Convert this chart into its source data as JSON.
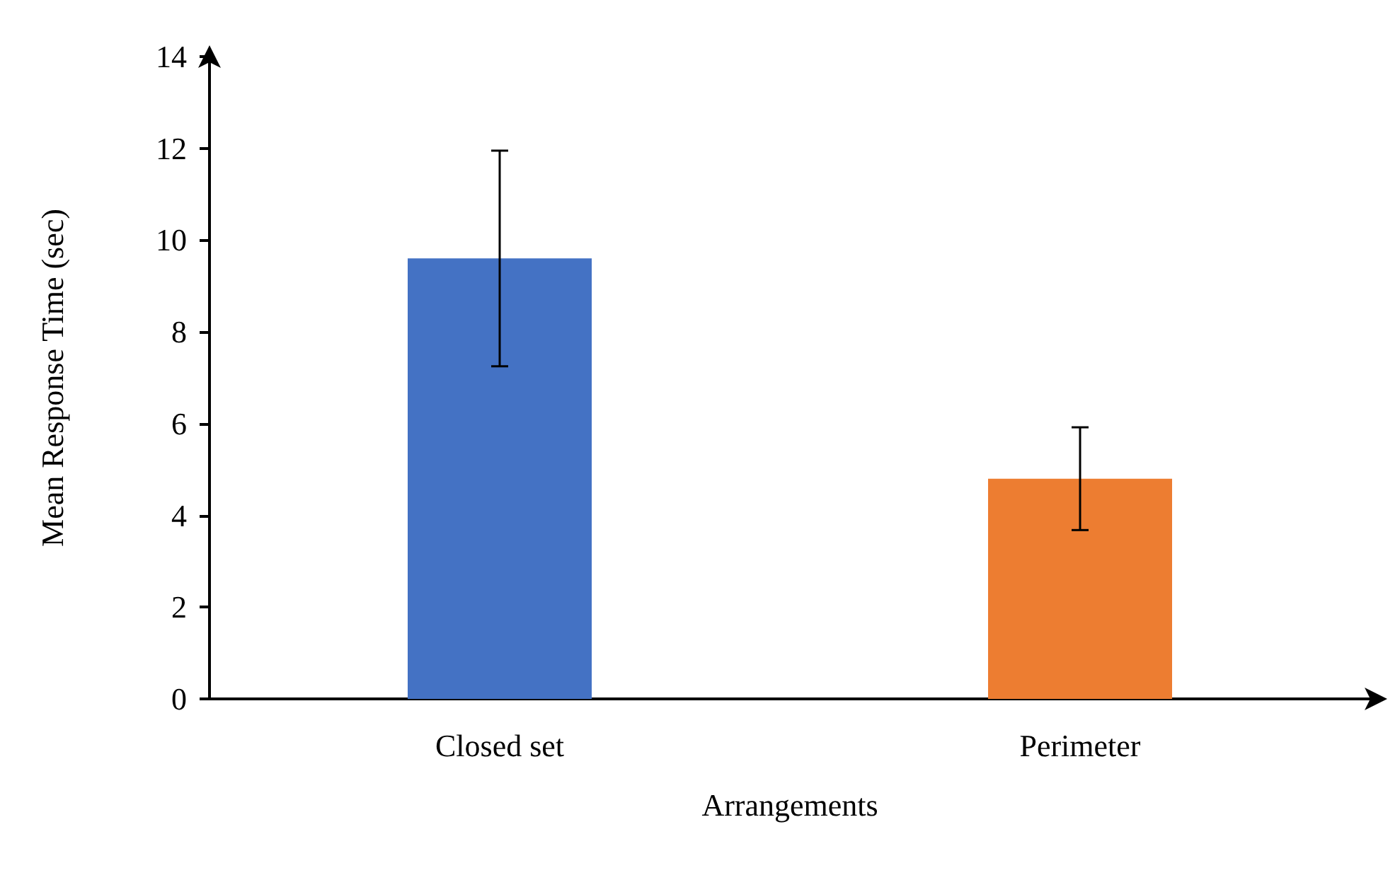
{
  "chart_data": {
    "type": "bar",
    "xlabel": "Arrangements",
    "ylabel": "Mean Response Time (sec)",
    "categories": [
      "Closed set",
      "Perimeter"
    ],
    "values": [
      9.6,
      4.8
    ],
    "errors": [
      2.35,
      1.12
    ],
    "colors": [
      "#4472c4",
      "#ed7d31"
    ],
    "ylim": [
      0,
      14
    ],
    "yticks": [
      0,
      2,
      4,
      6,
      8,
      10,
      12,
      14
    ]
  }
}
